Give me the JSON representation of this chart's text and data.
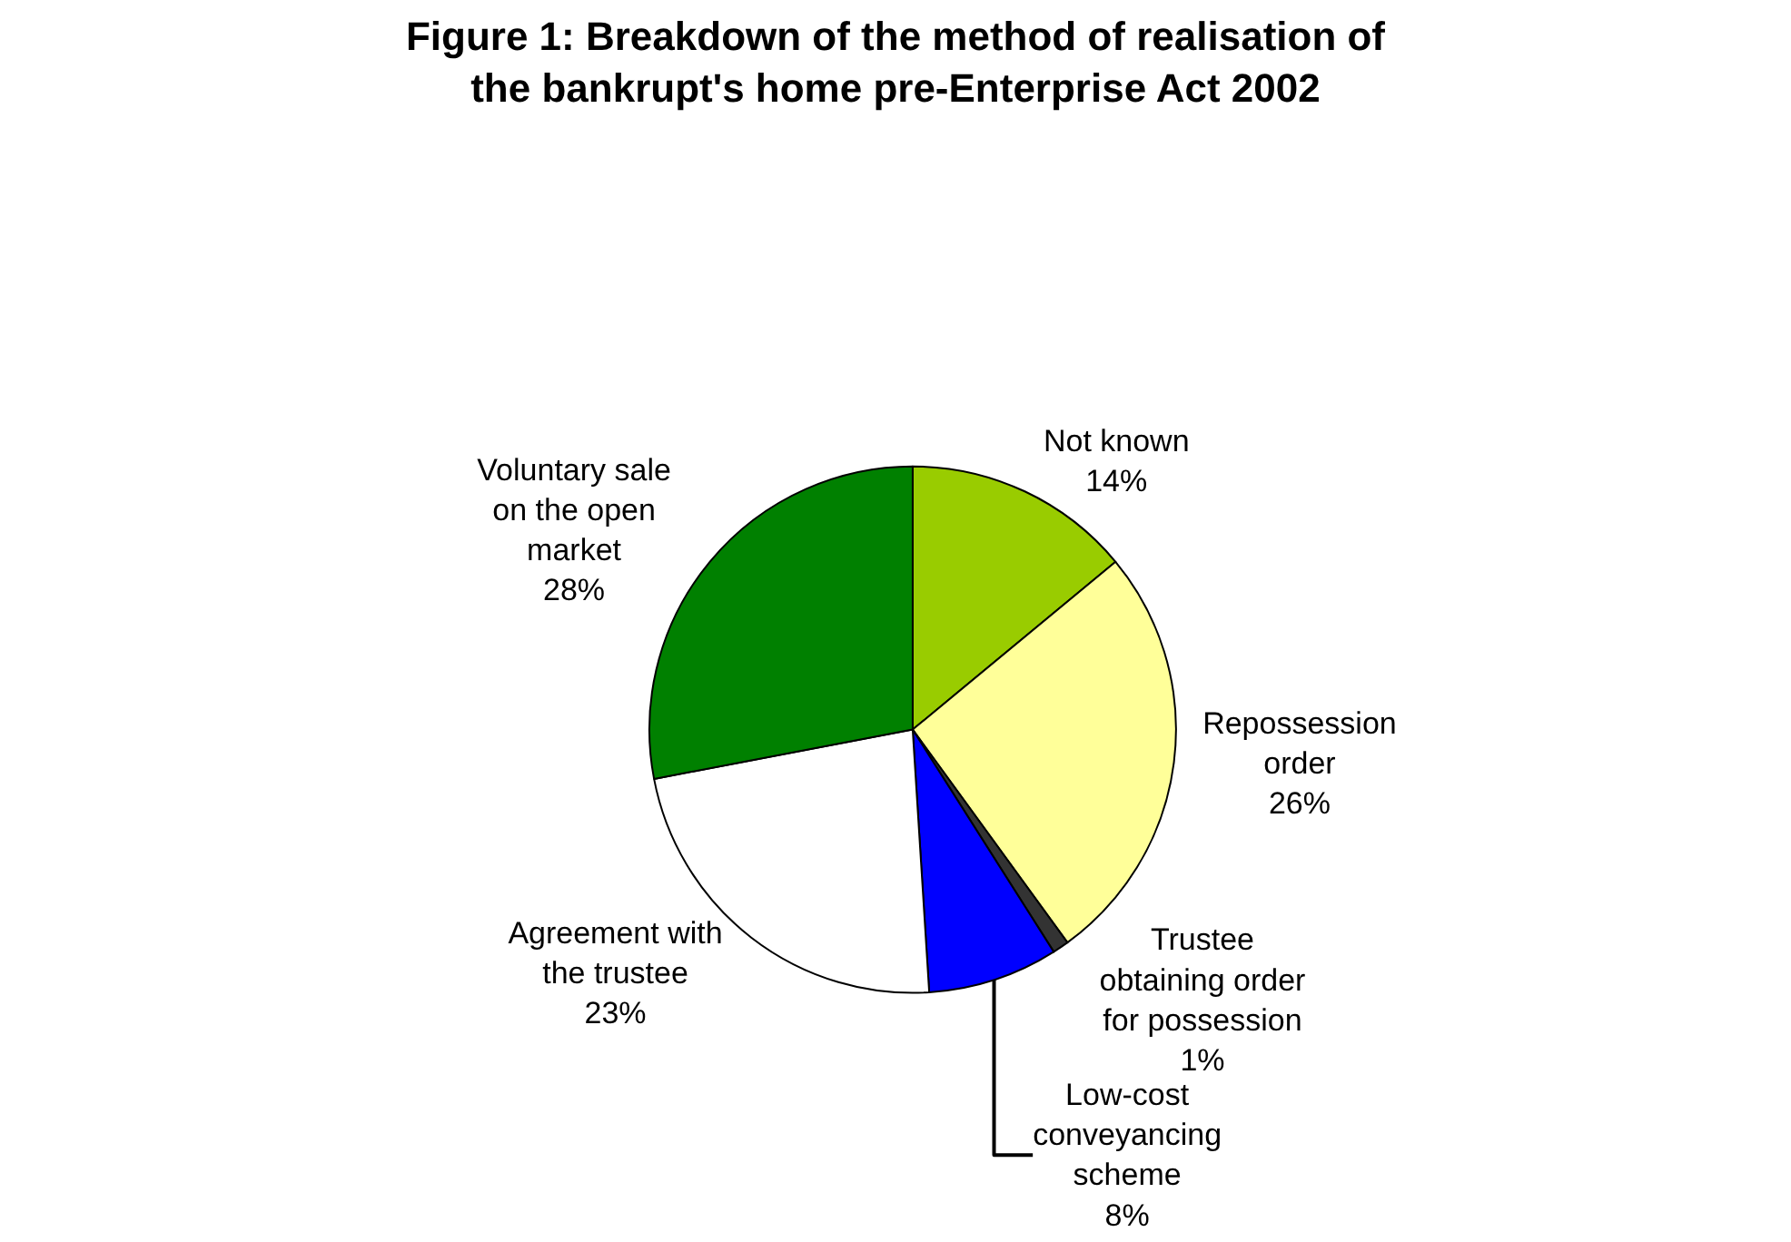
{
  "chart_data": {
    "type": "pie",
    "title": "Figure 1: Breakdown of the method of realisation of the bankrupt's home pre-Enterprise Act 2002",
    "categories": [
      "Not known",
      "Repossession order",
      "Trustee obtaining order for possession",
      "Low-cost conveyancing scheme",
      "Agreement with the trustee",
      "Voluntary sale on the open market"
    ],
    "values": [
      14,
      26,
      1,
      8,
      23,
      28
    ],
    "colors": [
      "#99cc00",
      "#ffff99",
      "#333333",
      "#0000ff",
      "#ffffff",
      "#008000"
    ],
    "value_labels": [
      "14%",
      "26%",
      "1%",
      "8%",
      "23%",
      "28%"
    ]
  }
}
